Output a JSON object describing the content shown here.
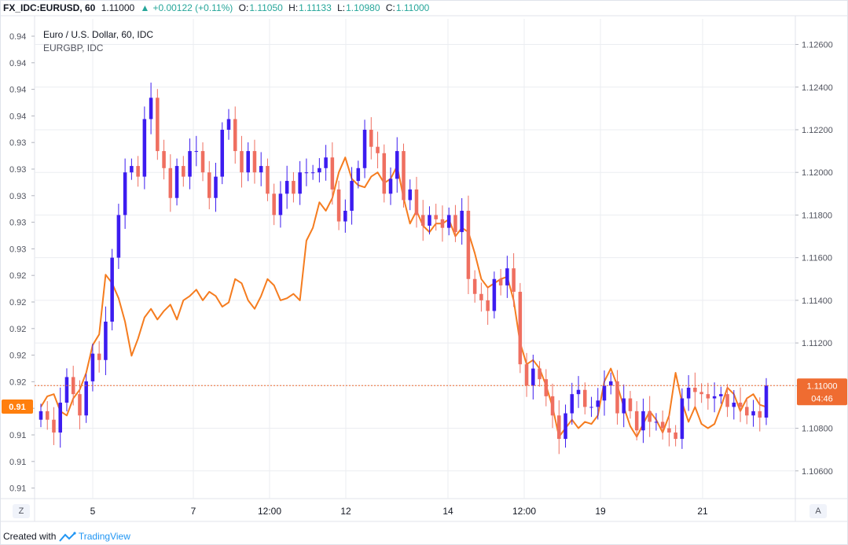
{
  "header": {
    "symbol": "FX_IDC:EURUSD, 60",
    "last": "1.11000",
    "change_icon": "triangle-up-icon",
    "change": "+0.00122 (+0.11%)",
    "o_label": "O:",
    "o": "1.11050",
    "h_label": "H:",
    "h": "1.11133",
    "l_label": "L:",
    "l": "1.10980",
    "c_label": "C:",
    "c": "1.11000"
  },
  "legend": {
    "main": "Euro / U.S. Dollar, 60, IDC",
    "compare": "EURGBP, IDC"
  },
  "price_tag": {
    "value": "1.11000",
    "countdown": "04:46",
    "color": "#ef6c31"
  },
  "compare_tag": {
    "value": "0.91",
    "color": "#ff7f0e"
  },
  "buttons": {
    "left": "Z",
    "right": "A"
  },
  "footer": {
    "prefix": "Created with",
    "brand": "TradingView",
    "brand_icon": "tradingview-logo-icon"
  },
  "colors": {
    "candle_up": "#3c1cf0",
    "candle_down": "#ef6f60",
    "compare_line": "#f57c1f",
    "grid": "#ebedf1"
  },
  "chart_data": {
    "type": "line",
    "title": "Euro / U.S. Dollar, 60, IDC",
    "x_ticks": [
      "5",
      "7",
      "12:00",
      "12",
      "14",
      "12:00",
      "19",
      "21"
    ],
    "right_axis": {
      "ticks": [
        "1.12600",
        "1.12400",
        "1.12200",
        "1.12000",
        "1.11800",
        "1.11600",
        "1.11400",
        "1.11200",
        "1.11000",
        "1.10800",
        "1.10600"
      ],
      "range": [
        1.1047,
        1.1272
      ]
    },
    "left_axis": {
      "ticks": [
        "0.94",
        "0.94",
        "0.94",
        "0.94",
        "0.93",
        "0.93",
        "0.93",
        "0.93",
        "0.93",
        "0.92",
        "0.92",
        "0.92",
        "0.92",
        "0.92",
        "0.91",
        "0.91",
        "0.91",
        "0.91"
      ]
    },
    "series": [
      {
        "name": "Euro / U.S. Dollar, 60, IDC",
        "kind": "candlestick",
        "x": [
          0,
          3,
          6,
          9,
          12,
          15,
          18,
          21,
          24,
          27,
          30,
          33,
          36,
          39,
          42,
          45,
          48,
          51,
          54,
          57,
          60,
          63,
          66,
          69,
          72,
          75,
          78,
          81,
          84,
          87,
          90,
          93,
          96,
          99,
          102,
          105,
          108,
          111,
          114,
          117,
          120,
          123,
          126,
          129,
          132,
          135,
          138,
          141,
          144,
          147,
          150,
          153,
          156,
          159,
          162,
          165,
          168,
          171,
          174,
          177,
          180,
          183,
          186,
          189,
          192,
          195,
          198,
          201,
          204,
          207,
          210,
          213,
          216,
          219,
          222,
          225,
          228,
          231,
          234,
          237,
          240,
          243,
          246,
          249,
          252,
          255,
          258,
          261,
          264,
          267,
          270,
          273,
          276,
          279,
          282,
          285,
          288,
          291,
          294,
          297,
          300,
          303,
          306,
          309,
          312,
          315,
          318,
          321,
          324,
          327,
          330,
          333,
          336
        ],
        "close": [
          1.1088,
          1.1084,
          1.1078,
          1.1092,
          1.1104,
          1.1096,
          1.1086,
          1.1102,
          1.1115,
          1.1112,
          1.113,
          1.116,
          1.118,
          1.12,
          1.1203,
          1.1198,
          1.1225,
          1.1235,
          1.121,
          1.1202,
          1.1188,
          1.1203,
          1.1198,
          1.121,
          1.121,
          1.12,
          1.1188,
          1.1198,
          1.122,
          1.1225,
          1.121,
          1.12,
          1.121,
          1.12,
          1.1203,
          1.119,
          1.118,
          1.119,
          1.1196,
          1.119,
          1.12,
          1.12,
          1.12,
          1.1202,
          1.1207,
          1.1192,
          1.1177,
          1.1182,
          1.1196,
          1.1202,
          1.122,
          1.1212,
          1.1209,
          1.119,
          1.1197,
          1.121,
          1.1187,
          1.1192,
          1.118,
          1.1175,
          1.118,
          1.1178,
          1.1174,
          1.118,
          1.1172,
          1.1182,
          1.115,
          1.1143,
          1.114,
          1.1135,
          1.115,
          1.1147,
          1.1155,
          1.1144,
          1.111,
          1.11,
          1.1108,
          1.1103,
          1.1095,
          1.1086,
          1.1075,
          1.1087,
          1.1096,
          1.1098,
          1.109,
          1.109,
          1.1093,
          1.11,
          1.1102,
          1.1087,
          1.1094,
          1.1088,
          1.1079,
          1.1088,
          1.1083,
          1.1083,
          1.108,
          1.1078,
          1.1075,
          1.1094,
          1.1099,
          1.1097,
          1.1096,
          1.1094,
          1.1095,
          1.1096,
          1.109,
          1.1092,
          1.109,
          1.1086,
          1.1088,
          1.1085,
          1.11
        ]
      },
      {
        "name": "EURGBP, IDC",
        "kind": "line",
        "x": [
          0,
          3,
          6,
          9,
          12,
          15,
          18,
          21,
          24,
          27,
          30,
          33,
          36,
          39,
          42,
          45,
          48,
          51,
          54,
          57,
          60,
          63,
          66,
          69,
          72,
          75,
          78,
          81,
          84,
          87,
          90,
          93,
          96,
          99,
          102,
          105,
          108,
          111,
          114,
          117,
          120,
          123,
          126,
          129,
          132,
          135,
          138,
          141,
          144,
          147,
          150,
          153,
          156,
          159,
          162,
          165,
          168,
          171,
          174,
          177,
          180,
          183,
          186,
          189,
          192,
          195,
          198,
          201,
          204,
          207,
          210,
          213,
          216,
          219,
          222,
          225,
          228,
          231,
          234,
          237,
          240,
          243,
          246,
          249,
          252,
          255,
          258,
          261,
          264,
          267,
          270,
          273,
          276,
          279,
          282,
          285,
          288,
          291,
          294,
          297,
          300,
          303,
          306,
          309,
          312,
          315,
          318,
          321,
          324,
          327,
          330,
          333,
          336
        ],
        "y": [
          1.109,
          1.1095,
          1.1096,
          1.1088,
          1.1086,
          1.1094,
          1.1098,
          1.1106,
          1.1119,
          1.1124,
          1.1152,
          1.1148,
          1.1141,
          1.113,
          1.1114,
          1.1122,
          1.1132,
          1.1136,
          1.1131,
          1.1135,
          1.1138,
          1.1131,
          1.114,
          1.1142,
          1.1145,
          1.114,
          1.1144,
          1.1142,
          1.1137,
          1.1139,
          1.115,
          1.1148,
          1.114,
          1.1136,
          1.1142,
          1.115,
          1.1147,
          1.114,
          1.1141,
          1.1143,
          1.114,
          1.1168,
          1.1174,
          1.1186,
          1.1182,
          1.1188,
          1.12,
          1.1207,
          1.1197,
          1.1194,
          1.1193,
          1.1198,
          1.12,
          1.1195,
          1.1197,
          1.1203,
          1.1188,
          1.1176,
          1.1182,
          1.1175,
          1.1172,
          1.1176,
          1.1176,
          1.1178,
          1.117,
          1.1174,
          1.1172,
          1.1162,
          1.115,
          1.1146,
          1.1148,
          1.115,
          1.1151,
          1.114,
          1.112,
          1.111,
          1.1112,
          1.1108,
          1.11,
          1.109,
          1.1076,
          1.108,
          1.1084,
          1.108,
          1.1083,
          1.1082,
          1.1086,
          1.1102,
          1.1108,
          1.11,
          1.109,
          1.1081,
          1.1076,
          1.1082,
          1.1088,
          1.1084,
          1.1078,
          1.1086,
          1.1106,
          1.1092,
          1.1083,
          1.109,
          1.1082,
          1.108,
          1.1082,
          1.109,
          1.1099,
          1.1096,
          1.1088,
          1.1094,
          1.1096,
          1.1091,
          1.109
        ]
      }
    ]
  }
}
